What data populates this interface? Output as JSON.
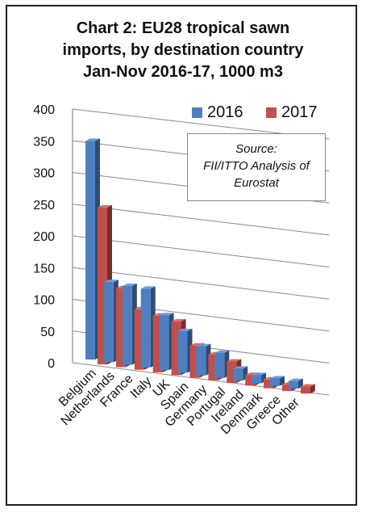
{
  "title_lines": [
    "Chart 2: EU28 tropical sawn",
    "imports, by destination country",
    "Jan-Nov 2016-17, 1000 m3"
  ],
  "legend": {
    "s2016": "2016",
    "s2017": "2017"
  },
  "source_note": {
    "line1": "Source:",
    "line2": "FII/ITTO Analysis of",
    "line3": "Eurostat"
  },
  "colors": {
    "s2016": "#4f7fbf",
    "s2017": "#c0504d"
  },
  "chart_data": {
    "type": "bar",
    "style": "3d-clustered-column",
    "categories": [
      "Belgium",
      "Netherlands",
      "France",
      "Italy",
      "UK",
      "Spain",
      "Germany",
      "Portugal",
      "Ireland",
      "Denmark",
      "Greece",
      "Other"
    ],
    "series": [
      {
        "name": "2016",
        "values": [
          347,
          127,
          125,
          125,
          87,
          66,
          46,
          40,
          19,
          13,
          12,
          12
        ]
      },
      {
        "name": "2017",
        "values": [
          249,
          125,
          96,
          90,
          85,
          51,
          41,
          34,
          17,
          14,
          10,
          11
        ]
      }
    ],
    "yticks": [
      0,
      50,
      100,
      150,
      200,
      250,
      300,
      350,
      400
    ],
    "ylim": [
      0,
      400
    ],
    "grid": true,
    "legend_position": "top-right"
  }
}
